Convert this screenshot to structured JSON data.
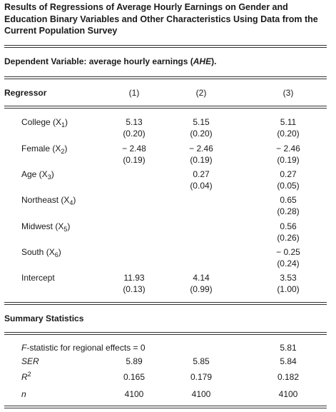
{
  "title": "Results of Regressions of Average Hourly Earnings on Gender and Education Binary Variables and Other Characteristics Using Data from the Current Population Survey",
  "dependent": {
    "prefix": "Dependent Variable: average hourly earnings (",
    "var": "AHE",
    "suffix": ")."
  },
  "header": {
    "regressor": "Regressor",
    "col1": "(1)",
    "col2": "(2)",
    "col3": "(3)"
  },
  "rows": [
    {
      "name": "College (X",
      "sub": "1",
      "close": ")",
      "c1": "5.13",
      "c1se": "(0.20)",
      "c2": "5.15",
      "c2se": "(0.20)",
      "c3": "5.11",
      "c3se": "(0.20)"
    },
    {
      "name": "Female (X",
      "sub": "2",
      "close": ")",
      "c1": "− 2.48",
      "c1se": "(0.19)",
      "c2": "− 2.46",
      "c2se": "(0.19)",
      "c3": "− 2.46",
      "c3se": "(0.19)"
    },
    {
      "name": "Age (X",
      "sub": "3",
      "close": ")",
      "c2": "0.27",
      "c2se": "(0.04)",
      "c3": "0.27",
      "c3se": "(0.05)"
    },
    {
      "name": "Northeast (X",
      "sub": "4",
      "close": ")",
      "c3": "0.65",
      "c3se": "(0.28)"
    },
    {
      "name": "Midwest (X",
      "sub": "5",
      "close": ")",
      "c3": "0.56",
      "c3se": "(0.26)"
    },
    {
      "name": "South (X",
      "sub": "6",
      "close": ")",
      "c3": "− 0.25",
      "c3se": "(0.24)"
    },
    {
      "name": "Intercept",
      "c1": "11.93",
      "c1se": "(0.13)",
      "c2": "4.14",
      "c2se": "(0.99)",
      "c3": "3.53",
      "c3se": "(1.00)"
    }
  ],
  "summary": {
    "heading": "Summary Statistics",
    "fstat": {
      "label_f": "F",
      "label_rest": "-statistic for regional effects = 0",
      "c3": "5.81"
    },
    "ser": {
      "label": "SER",
      "c1": "5.89",
      "c2": "5.85",
      "c3": "5.84"
    },
    "r2": {
      "label": "R",
      "sup": "2",
      "c1": "0.165",
      "c2": "0.179",
      "c3": "0.182"
    },
    "n": {
      "label": "n",
      "c1": "4100",
      "c2": "4100",
      "c3": "4100"
    }
  }
}
